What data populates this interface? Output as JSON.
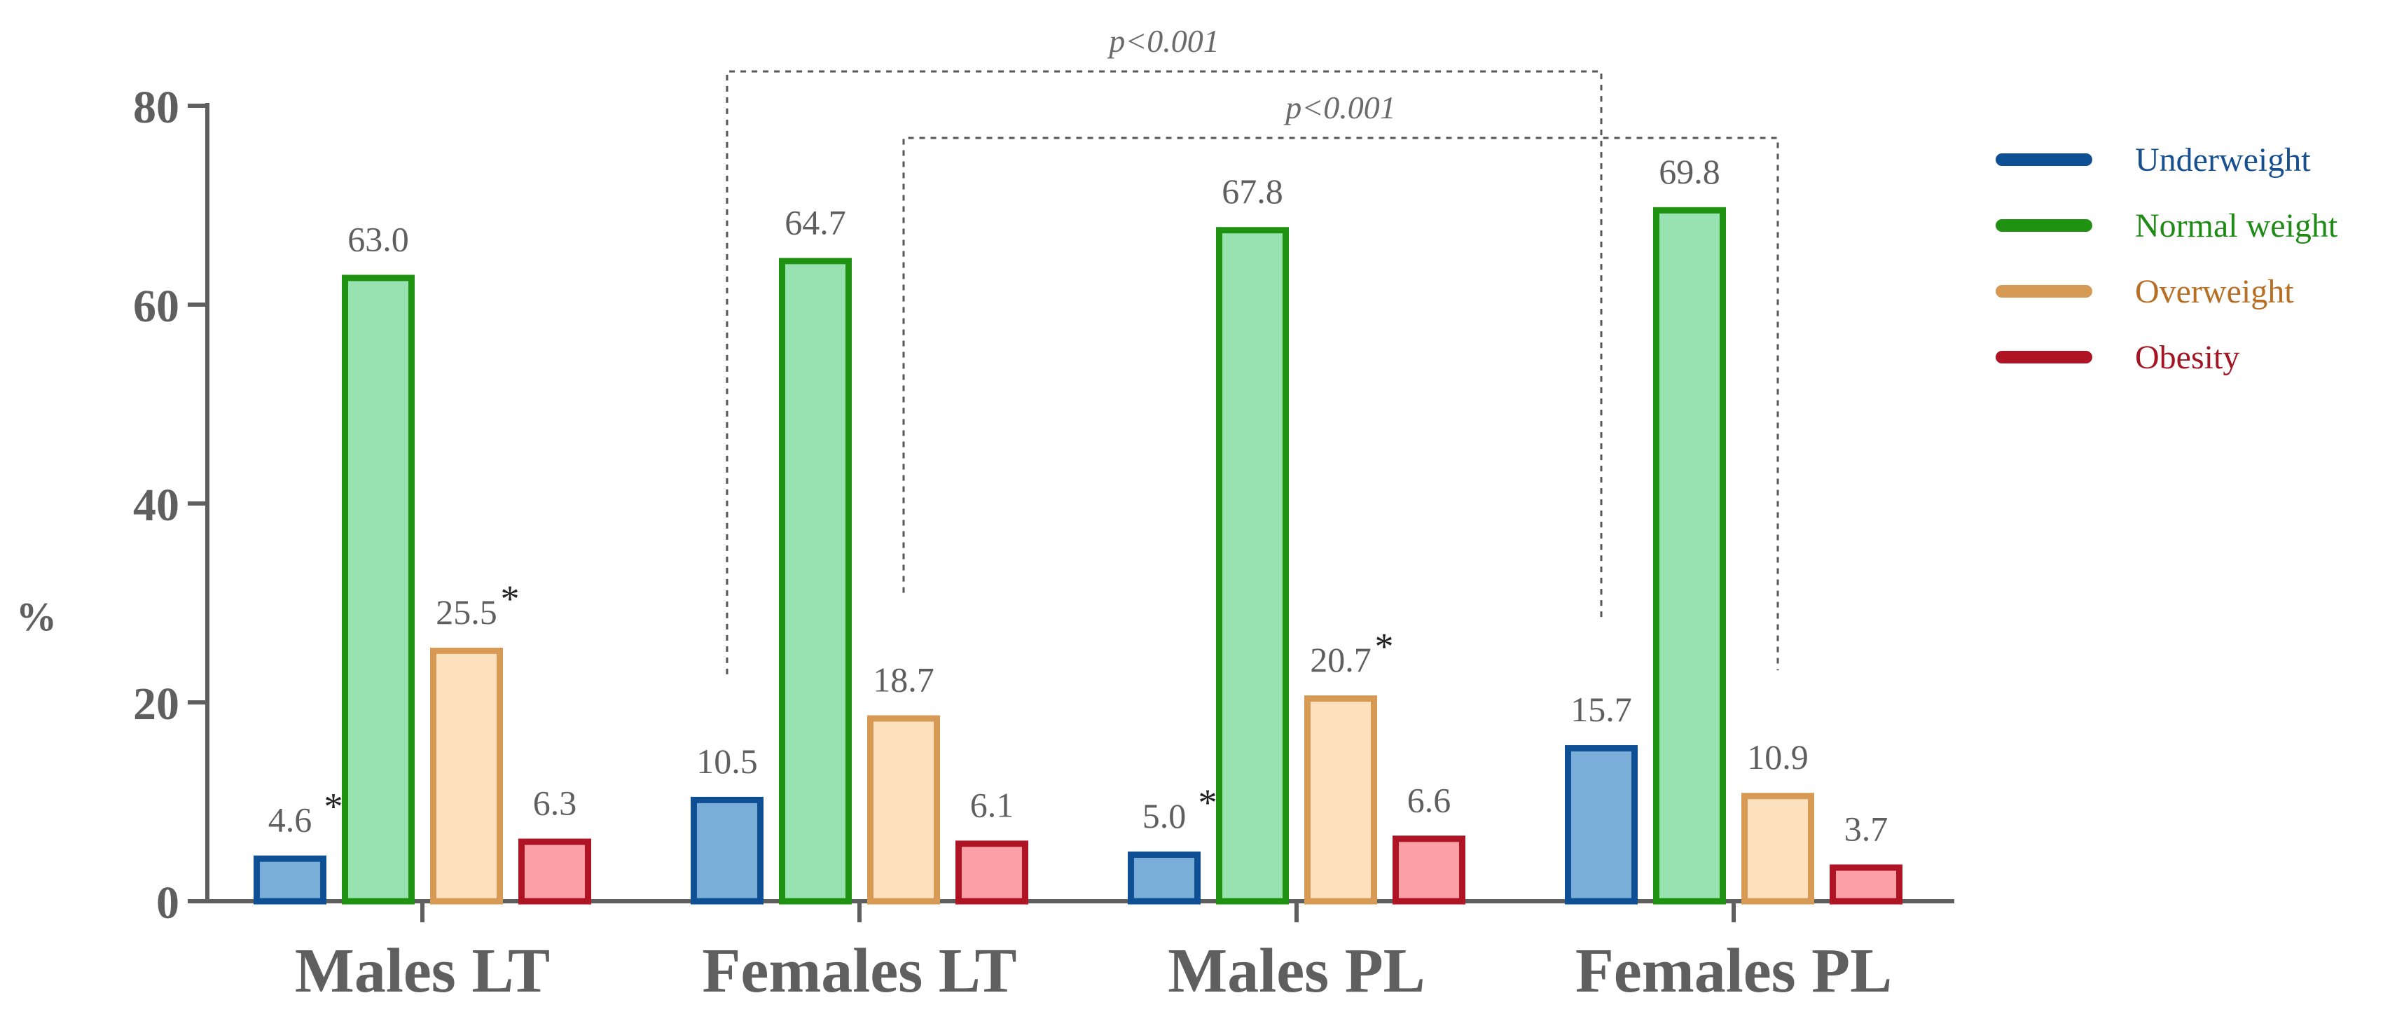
{
  "chart_data": {
    "type": "bar",
    "title": "",
    "xlabel": "",
    "ylabel": "%",
    "ylim": [
      0,
      80
    ],
    "yticks": [
      0,
      20,
      40,
      60,
      80
    ],
    "grid": false,
    "legend_position": "right",
    "categories": [
      "Males LT",
      "Females LT",
      "Males PL",
      "Females PL"
    ],
    "series": [
      {
        "name": "Underweight",
        "stroke": "#0f4f94",
        "fill": "#7aadd8",
        "text_color": "#174f8f",
        "values": [
          4.6,
          10.5,
          5.0,
          15.7
        ],
        "labels": [
          "4.6",
          "10.5",
          "5.0",
          "15.7"
        ],
        "stars": [
          true,
          false,
          true,
          false
        ]
      },
      {
        "name": "Normal weight",
        "stroke": "#1f9212",
        "fill": "#98e1b0",
        "text_color": "#1f8a16",
        "values": [
          63.0,
          64.7,
          67.8,
          69.8
        ],
        "labels": [
          "63.0",
          "64.7",
          "67.8",
          "69.8"
        ],
        "stars": [
          false,
          false,
          false,
          false
        ]
      },
      {
        "name": "Overweight",
        "stroke": "#d79a55",
        "fill": "#fde0bd",
        "text_color": "#b66f24",
        "values": [
          25.5,
          18.7,
          20.7,
          10.9
        ],
        "labels": [
          "25.5",
          "18.7",
          "20.7",
          "10.9"
        ],
        "stars": [
          true,
          false,
          true,
          false
        ]
      },
      {
        "name": "Obesity",
        "stroke": "#ae1423",
        "fill": "#fba0a6",
        "text_color": "#a31522",
        "values": [
          6.3,
          6.1,
          6.6,
          3.7
        ],
        "labels": [
          "6.3",
          "6.1",
          "6.6",
          "3.7"
        ],
        "stars": [
          false,
          false,
          false,
          false
        ]
      }
    ],
    "star_symbol": "*",
    "annotations": [
      {
        "text": "p<0.001",
        "from": {
          "category": "Females LT",
          "series": "Underweight"
        },
        "to": {
          "category": "Females PL",
          "series": "Underweight"
        }
      },
      {
        "text": "p<0.001",
        "from": {
          "category": "Females LT",
          "series": "Overweight"
        },
        "to": {
          "category": "Females PL",
          "series": "Overweight"
        }
      }
    ]
  }
}
